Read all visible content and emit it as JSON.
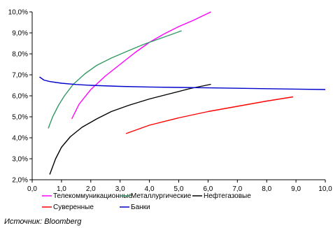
{
  "chart_data": {
    "type": "line",
    "xlim": [
      0,
      10
    ],
    "ylim": [
      2,
      10
    ],
    "x_ticks": [
      "0,0",
      "1,0",
      "2,0",
      "3,0",
      "4,0",
      "5,0",
      "6,0",
      "7,0",
      "8,0",
      "9,0",
      "10,0"
    ],
    "y_ticks": [
      "2,0%",
      "3,0%",
      "4,0%",
      "5,0%",
      "6,0%",
      "7,0%",
      "8,0%",
      "9,0%",
      "10,0%"
    ],
    "grid": false,
    "legend_position": "bottom",
    "series": [
      {
        "name": "Телекоммуникационные",
        "color": "#ff00ff",
        "x": [
          1.35,
          1.6,
          2.0,
          2.5,
          3.0,
          3.5,
          4.0,
          4.5,
          5.0,
          5.5,
          6.1
        ],
        "y": [
          4.9,
          5.6,
          6.3,
          6.95,
          7.5,
          8.05,
          8.55,
          8.95,
          9.3,
          9.6,
          10.0
        ]
      },
      {
        "name": "Металлургические",
        "color": "#339966",
        "x": [
          0.55,
          0.7,
          0.9,
          1.1,
          1.4,
          1.8,
          2.2,
          2.7,
          3.2,
          3.8,
          4.4,
          5.1
        ],
        "y": [
          4.45,
          5.0,
          5.55,
          6.0,
          6.55,
          7.05,
          7.45,
          7.8,
          8.1,
          8.45,
          8.75,
          9.1
        ]
      },
      {
        "name": "Нефтегазовые",
        "color": "#000000",
        "x": [
          0.6,
          0.8,
          1.0,
          1.3,
          1.7,
          2.2,
          2.7,
          3.3,
          4.0,
          4.7,
          5.4,
          6.1
        ],
        "y": [
          2.25,
          3.0,
          3.55,
          4.05,
          4.5,
          4.9,
          5.25,
          5.55,
          5.85,
          6.1,
          6.35,
          6.55
        ]
      },
      {
        "name": "Суверенные",
        "color": "#ff0000",
        "x": [
          3.2,
          4.0,
          5.0,
          6.0,
          7.0,
          8.0,
          8.9
        ],
        "y": [
          4.2,
          4.6,
          4.95,
          5.25,
          5.5,
          5.75,
          5.95
        ]
      },
      {
        "name": "Банки",
        "color": "#0000cc",
        "x": [
          0.25,
          0.4,
          0.6,
          1.0,
          1.5,
          2.0,
          3.0,
          4.0,
          5.0,
          6.0,
          7.0,
          8.0,
          9.0,
          10.0
        ],
        "y": [
          6.9,
          6.75,
          6.68,
          6.6,
          6.54,
          6.5,
          6.45,
          6.42,
          6.4,
          6.38,
          6.36,
          6.34,
          6.32,
          6.3
        ]
      }
    ]
  },
  "source": "Источник: Bloomberg"
}
